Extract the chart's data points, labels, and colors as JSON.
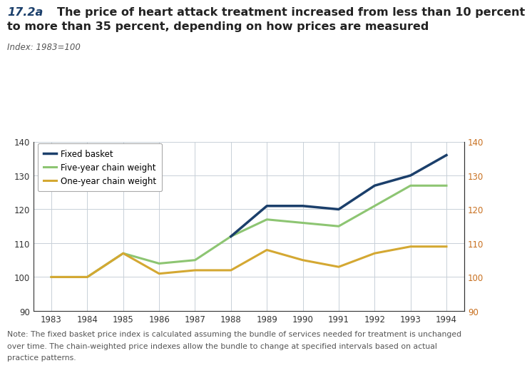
{
  "title_number": "17.2a",
  "title_text": "  The price of heart attack treatment increased from less than 10 percent\nto more than 35 percent, depending on how prices are measured",
  "subtitle": "Index: 1983=100",
  "note": "Note: The fixed basket price index is calculated assuming the bundle of services needed for treatment is unchanged\nover time. The chain-weighted price indexes allow the bundle to change at specified intervals based on actual\npractice patterns.",
  "years": [
    1983,
    1984,
    1985,
    1986,
    1987,
    1988,
    1989,
    1990,
    1991,
    1992,
    1993,
    1994
  ],
  "fixed_basket": [
    null,
    null,
    null,
    null,
    null,
    112,
    121,
    121,
    120,
    127,
    130,
    136
  ],
  "five_year": [
    100,
    100,
    107,
    104,
    105,
    112,
    117,
    116,
    115,
    121,
    127,
    127
  ],
  "one_year": [
    100,
    100,
    107,
    101,
    102,
    102,
    108,
    105,
    103,
    107,
    109,
    109
  ],
  "fixed_basket_color": "#1b3f6b",
  "five_year_color": "#8dc572",
  "one_year_color": "#d4a832",
  "right_tick_color": "#c87020",
  "ylim": [
    90,
    140
  ],
  "yticks": [
    90,
    100,
    110,
    120,
    130,
    140
  ],
  "xlim": [
    1982.5,
    1994.5
  ],
  "legend_labels": [
    "Fixed basket",
    "Five-year chain weight",
    "One-year chain weight"
  ],
  "background_color": "#ffffff",
  "plot_bg_color": "#ffffff",
  "grid_color": "#c8d0d8",
  "title_color": "#1b3f6b",
  "subtitle_color": "#555555",
  "note_color": "#555555",
  "axis_color": "#333333"
}
